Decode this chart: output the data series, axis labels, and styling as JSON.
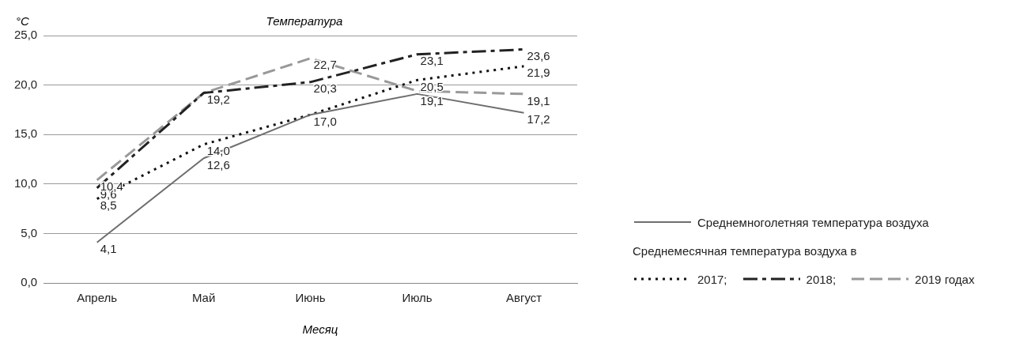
{
  "chart_data": {
    "type": "line",
    "title": "Температура",
    "xlabel": "Месяц",
    "ylabel": "°C",
    "legend_title": "Среднемесячная температура воздуха в",
    "categories": [
      "Апрель",
      "Май",
      "Июнь",
      "Июль",
      "Август"
    ],
    "series": [
      {
        "name": "Среднемноголетняя температура воздуха",
        "color": "#6e6e6e",
        "line_style": "solid",
        "values": [
          4.1,
          12.6,
          17.0,
          19.1,
          17.2
        ],
        "value_labels": [
          "4,1",
          "12,6",
          "17,0",
          "19,1",
          "17,2"
        ]
      },
      {
        "name": "2017;",
        "color": "#111111",
        "line_style": "dotted",
        "values": [
          8.5,
          14.0,
          17.0,
          20.5,
          21.9
        ],
        "value_labels": [
          "8,5",
          "14,0",
          null,
          "20,5",
          "21,9"
        ]
      },
      {
        "name": "2018;",
        "color": "#222222",
        "line_style": "dashed",
        "values": [
          9.6,
          19.2,
          20.3,
          23.1,
          23.6
        ],
        "value_labels": [
          "9,6",
          "19,2",
          "20,3",
          "23,1",
          "23,6"
        ]
      },
      {
        "name": "2019 годах",
        "color": "#999999",
        "line_style": "dashed",
        "values": [
          10.4,
          19.2,
          22.7,
          19.4,
          19.1
        ],
        "value_labels": [
          "10,4",
          null,
          "22,7",
          null,
          "19,1"
        ]
      }
    ],
    "ylim": [
      0,
      25
    ],
    "yticks": [
      {
        "value": 0,
        "label": "0,0"
      },
      {
        "value": 5,
        "label": "5,0"
      },
      {
        "value": 10,
        "label": "10,0"
      },
      {
        "value": 15,
        "label": "15,0"
      },
      {
        "value": 20,
        "label": "20,0"
      },
      {
        "value": 25,
        "label": "25,0"
      }
    ],
    "grid": "y",
    "legend": "right",
    "marker": "none"
  }
}
